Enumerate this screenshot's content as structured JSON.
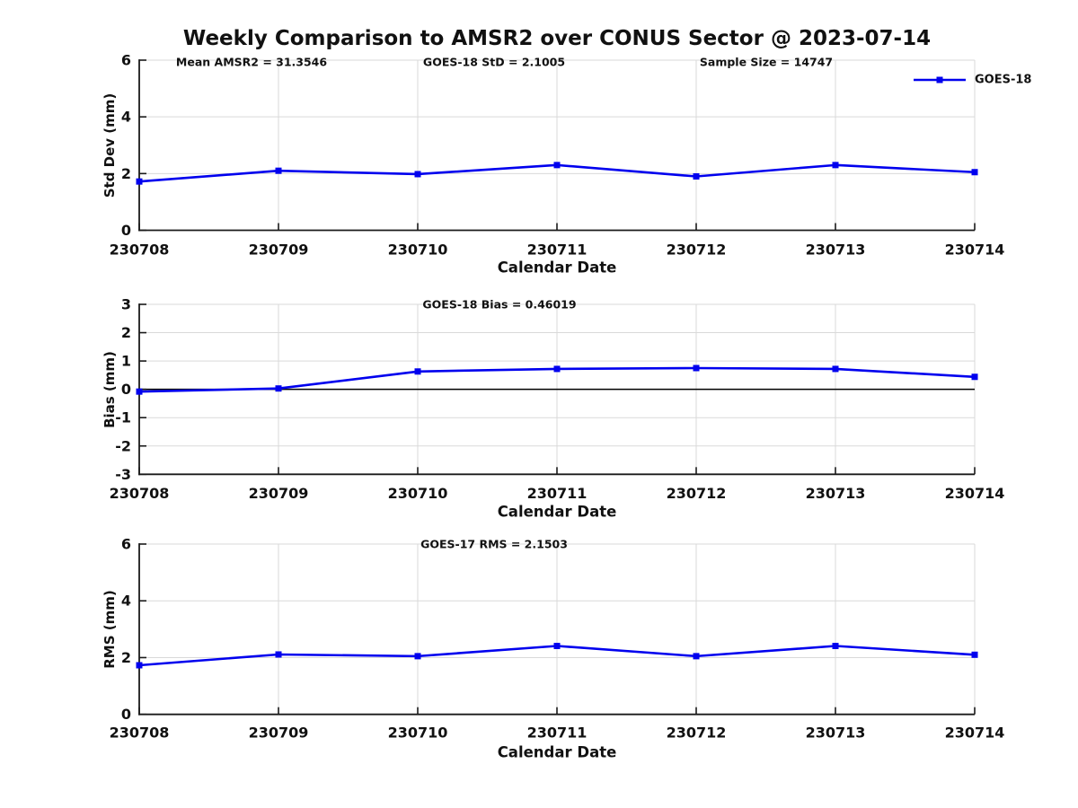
{
  "title": "Weekly Comparison to AMSR2 over CONUS Sector @ 2023-07-14",
  "accent_color": "#0000EE",
  "legend": {
    "label": "GOES-18",
    "position": "top-right"
  },
  "chart_data": [
    {
      "type": "line",
      "annotations": [
        "Mean AMSR2 = 31.3546",
        "GOES-18 StD = 2.1005",
        "Sample Size = 14747"
      ],
      "categories": [
        "230708",
        "230709",
        "230710",
        "230711",
        "230712",
        "230713",
        "230714"
      ],
      "series": [
        {
          "name": "GOES-18",
          "values": [
            1.72,
            2.1,
            1.98,
            2.3,
            1.9,
            2.3,
            2.05
          ]
        }
      ],
      "xlabel": "Calendar Date",
      "ylabel": "Std Dev (mm)",
      "ylim": [
        0,
        6
      ],
      "yticks": [
        0,
        2,
        4,
        6
      ],
      "grid": true,
      "zero_line": false
    },
    {
      "type": "line",
      "annotations": [
        "GOES-18 Bias  = 0.46019"
      ],
      "categories": [
        "230708",
        "230709",
        "230710",
        "230711",
        "230712",
        "230713",
        "230714"
      ],
      "series": [
        {
          "name": "GOES-18",
          "values": [
            -0.08,
            0.03,
            0.63,
            0.72,
            0.75,
            0.72,
            0.44
          ]
        }
      ],
      "xlabel": "Calendar Date",
      "ylabel": "Bias (mm)",
      "ylim": [
        -3,
        3
      ],
      "yticks": [
        -3,
        -2,
        -1,
        0,
        1,
        2,
        3
      ],
      "grid": true,
      "zero_line": true
    },
    {
      "type": "line",
      "annotations": [
        "GOES-17 RMS = 2.1503"
      ],
      "categories": [
        "230708",
        "230709",
        "230710",
        "230711",
        "230712",
        "230713",
        "230714"
      ],
      "series": [
        {
          "name": "GOES-18",
          "values": [
            1.73,
            2.11,
            2.05,
            2.41,
            2.05,
            2.41,
            2.1
          ]
        }
      ],
      "xlabel": "Calendar Date",
      "ylabel": "RMS (mm)",
      "ylim": [
        0,
        6
      ],
      "yticks": [
        0,
        2,
        4,
        6
      ],
      "grid": true,
      "zero_line": false
    }
  ]
}
